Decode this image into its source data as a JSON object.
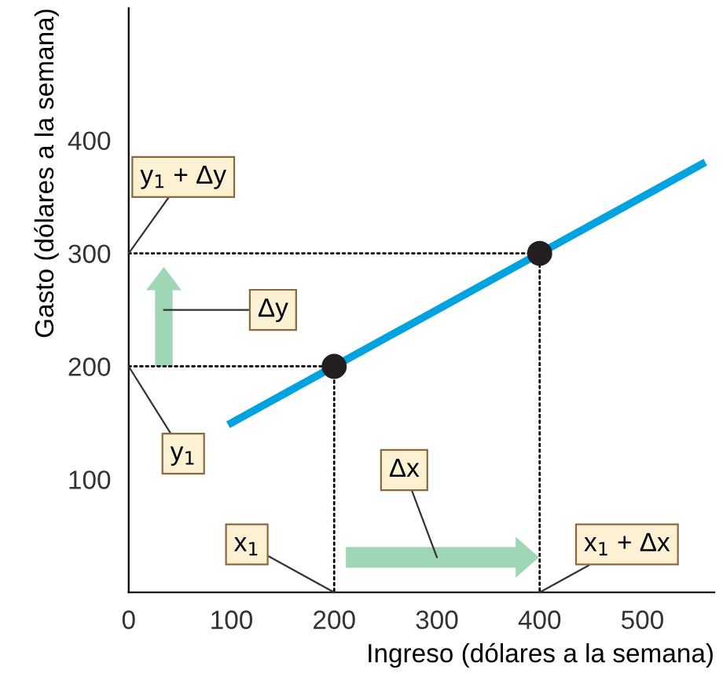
{
  "chart_data": {
    "type": "line",
    "xlabel": "Ingreso (dólares a la semana)",
    "ylabel": "Gasto (dólares a la semana)",
    "xlim": [
      0,
      570
    ],
    "ylim": [
      0,
      517
    ],
    "xticks": [
      0,
      100,
      200,
      300,
      400,
      500
    ],
    "yticks": [
      100,
      200,
      300,
      400
    ],
    "grid": false,
    "series": [
      {
        "color": "#00a3e0",
        "x": [
          100,
          558
        ],
        "values": [
          150,
          379
        ],
        "line_style": "solid",
        "marker": "none"
      },
      {
        "type": "line",
        "color": "#000000",
        "x": [
          0,
          200,
          200
        ],
        "values": [
          200,
          200,
          0
        ],
        "line_style": "dotted",
        "marker": "none"
      },
      {
        "type": "line",
        "color": "#000000",
        "x": [
          0,
          400,
          400
        ],
        "values": [
          300,
          300,
          0
        ],
        "line_style": "dotted",
        "marker": "none"
      },
      {
        "type": "scatter",
        "color": "#231f20",
        "x": [
          200,
          400
        ],
        "values": [
          200,
          300
        ],
        "marker": "circle"
      }
    ],
    "annotations": [
      {
        "text": "y$_{1}$ + Δy",
        "x": 0,
        "y": 300
      },
      "Δy",
      {
        "text": "y$_{1}$",
        "x": 0,
        "y": 200
      },
      {
        "text": "x$_{1}$",
        "x": 200,
        "y": 0
      },
      "Δx",
      {
        "text": "x$_{1}$ + Δx",
        "x": 400,
        "y": 0
      }
    ]
  }
}
